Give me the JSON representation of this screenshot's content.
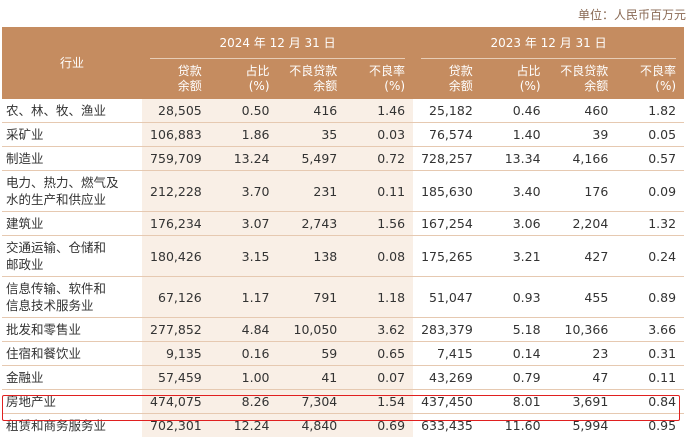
{
  "unit_label": "单位：人民币百万元",
  "header": {
    "industry": "行业",
    "period_2024": "2024 年 12 月 31 日",
    "period_2023": "2023 年 12 月 31 日",
    "columns": [
      [
        "贷款",
        "余额"
      ],
      [
        "占比",
        "(%)"
      ],
      [
        "不良贷款",
        "余额"
      ],
      [
        "不良率",
        "(%)"
      ]
    ]
  },
  "rows": [
    {
      "industry": [
        "农、林、牧、渔业"
      ],
      "v2024": [
        "28,505",
        "0.50",
        "416",
        "1.46"
      ],
      "v2023": [
        "25,182",
        "0.46",
        "460",
        "1.82"
      ]
    },
    {
      "industry": [
        "采矿业"
      ],
      "v2024": [
        "106,883",
        "1.86",
        "35",
        "0.03"
      ],
      "v2023": [
        "76,574",
        "1.40",
        "39",
        "0.05"
      ]
    },
    {
      "industry": [
        "制造业"
      ],
      "v2024": [
        "759,709",
        "13.24",
        "5,497",
        "0.72"
      ],
      "v2023": [
        "728,257",
        "13.34",
        "4,166",
        "0.57"
      ]
    },
    {
      "industry": [
        "电力、热力、燃气及",
        "水的生产和供应业"
      ],
      "v2024": [
        "212,228",
        "3.70",
        "231",
        "0.11"
      ],
      "v2023": [
        "185,630",
        "3.40",
        "176",
        "0.09"
      ]
    },
    {
      "industry": [
        "建筑业"
      ],
      "v2024": [
        "176,234",
        "3.07",
        "2,743",
        "1.56"
      ],
      "v2023": [
        "167,254",
        "3.06",
        "2,204",
        "1.32"
      ]
    },
    {
      "industry": [
        "交通运输、仓储和",
        "邮政业"
      ],
      "v2024": [
        "180,426",
        "3.15",
        "138",
        "0.08"
      ],
      "v2023": [
        "175,265",
        "3.21",
        "427",
        "0.24"
      ]
    },
    {
      "industry": [
        "信息传输、软件和",
        "信息技术服务业"
      ],
      "v2024": [
        "67,126",
        "1.17",
        "791",
        "1.18"
      ],
      "v2023": [
        "51,047",
        "0.93",
        "455",
        "0.89"
      ]
    },
    {
      "industry": [
        "批发和零售业"
      ],
      "v2024": [
        "277,852",
        "4.84",
        "10,050",
        "3.62"
      ],
      "v2023": [
        "283,379",
        "5.18",
        "10,366",
        "3.66"
      ]
    },
    {
      "industry": [
        "住宿和餐饮业"
      ],
      "v2024": [
        "9,135",
        "0.16",
        "59",
        "0.65"
      ],
      "v2023": [
        "7,415",
        "0.14",
        "23",
        "0.31"
      ]
    },
    {
      "industry": [
        "金融业"
      ],
      "v2024": [
        "57,459",
        "1.00",
        "41",
        "0.07"
      ],
      "v2023": [
        "43,269",
        "0.79",
        "47",
        "0.11"
      ]
    },
    {
      "industry": [
        "房地产业"
      ],
      "v2024": [
        "474,075",
        "8.26",
        "7,304",
        "1.54"
      ],
      "v2023": [
        "437,450",
        "8.01",
        "3,691",
        "0.84"
      ]
    },
    {
      "industry": [
        "租赁和商务服务业"
      ],
      "v2024": [
        "702,301",
        "12.24",
        "4,840",
        "0.69"
      ],
      "v2023": [
        "633,435",
        "11.60",
        "5,994",
        "0.95"
      ]
    }
  ],
  "highlighted_row": "房地产业"
}
